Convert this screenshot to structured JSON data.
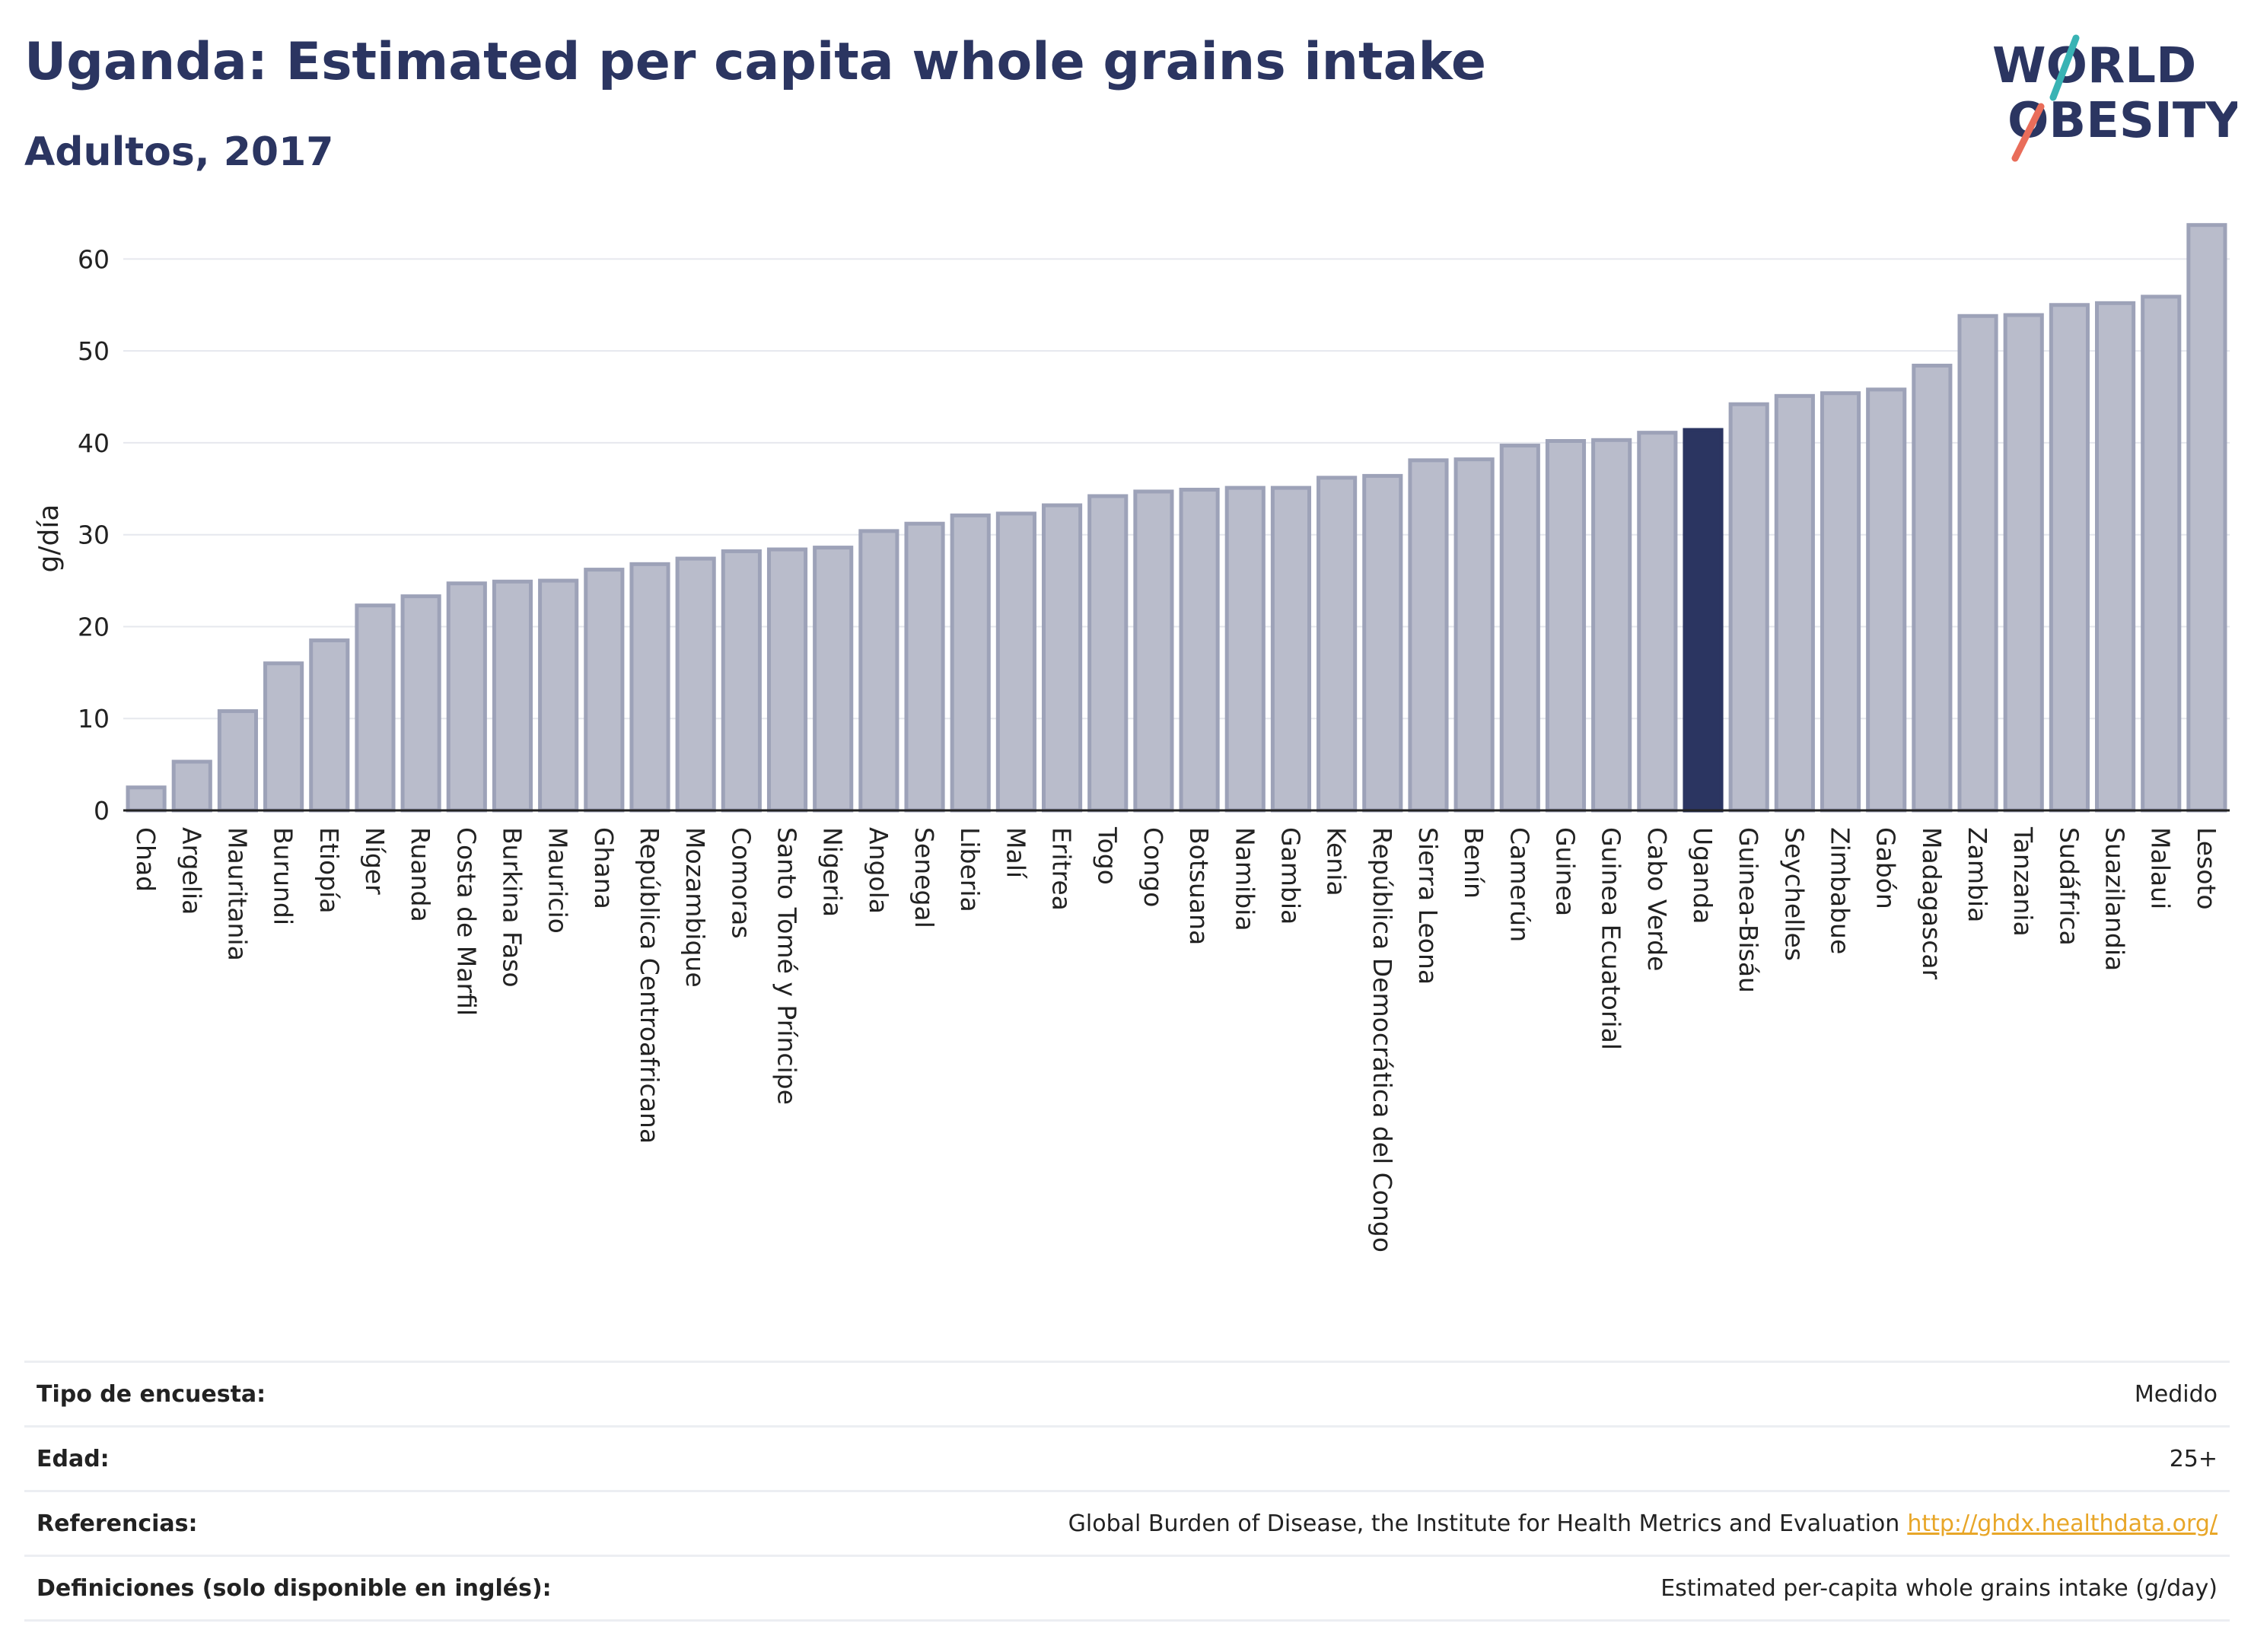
{
  "header": {
    "title": "Uganda: Estimated per capita whole grains intake",
    "subtitle": "Adultos, 2017",
    "logo_line1": "WORLD",
    "logo_line2": "OBESITY"
  },
  "colors": {
    "bar_fill": "#b9bccb",
    "bar_stroke": "#9da2b8",
    "highlight": "#2b3561",
    "grid": "#e6e8ee",
    "logo_teal": "#39b3b4",
    "logo_coral": "#e96d5a"
  },
  "chart_data": {
    "type": "bar",
    "ylabel": "g/día",
    "ylim": [
      0,
      65
    ],
    "yticks": [
      0,
      10,
      20,
      30,
      40,
      50,
      60
    ],
    "highlight": "Uganda",
    "grid": true,
    "categories": [
      "Chad",
      "Argelia",
      "Mauritania",
      "Burundi",
      "Etiopía",
      "Níger",
      "Ruanda",
      "Costa de Marfil",
      "Burkina Faso",
      "Mauricio",
      "Ghana",
      "República Centroafricana",
      "Mozambique",
      "Comoras",
      "Santo Tomé y Príncipe",
      "Nigeria",
      "Angola",
      "Senegal",
      "Liberia",
      "Malí",
      "Eritrea",
      "Togo",
      "Congo",
      "Botsuana",
      "Namibia",
      "Gambia",
      "Kenia",
      "República Democrática del Congo",
      "Sierra Leona",
      "Benín",
      "Camerún",
      "Guinea",
      "Guinea Ecuatorial",
      "Cabo Verde",
      "Uganda",
      "Guinea-Bisáu",
      "Seychelles",
      "Zimbabue",
      "Gabón",
      "Madagascar",
      "Zambia",
      "Tanzania",
      "Sudáfrica",
      "Suazilandia",
      "Malaui",
      "Lesoto"
    ],
    "values": [
      2.5,
      5.3,
      10.8,
      16.0,
      18.5,
      22.3,
      23.3,
      24.7,
      24.9,
      25.0,
      26.2,
      26.8,
      27.4,
      28.2,
      28.4,
      28.6,
      30.4,
      31.2,
      32.1,
      32.3,
      33.2,
      34.2,
      34.7,
      34.9,
      35.1,
      35.1,
      36.2,
      36.4,
      38.1,
      38.2,
      39.7,
      40.2,
      40.3,
      41.1,
      41.4,
      44.2,
      45.1,
      45.4,
      45.8,
      48.4,
      53.8,
      53.9,
      55.0,
      55.2,
      55.9,
      63.7
    ]
  },
  "info": {
    "survey_label": "Tipo de encuesta:",
    "survey_value": "Medido",
    "age_label": "Edad:",
    "age_value": "25+",
    "ref_label": "Referencias:",
    "ref_value": "Global Burden of Disease, the Institute for Health Metrics and Evaluation",
    "ref_link": "http://ghdx.healthdata.org/",
    "def_label": "Definiciones (solo disponible en inglés):",
    "def_value": "Estimated per-capita whole grains intake (g/day)"
  }
}
